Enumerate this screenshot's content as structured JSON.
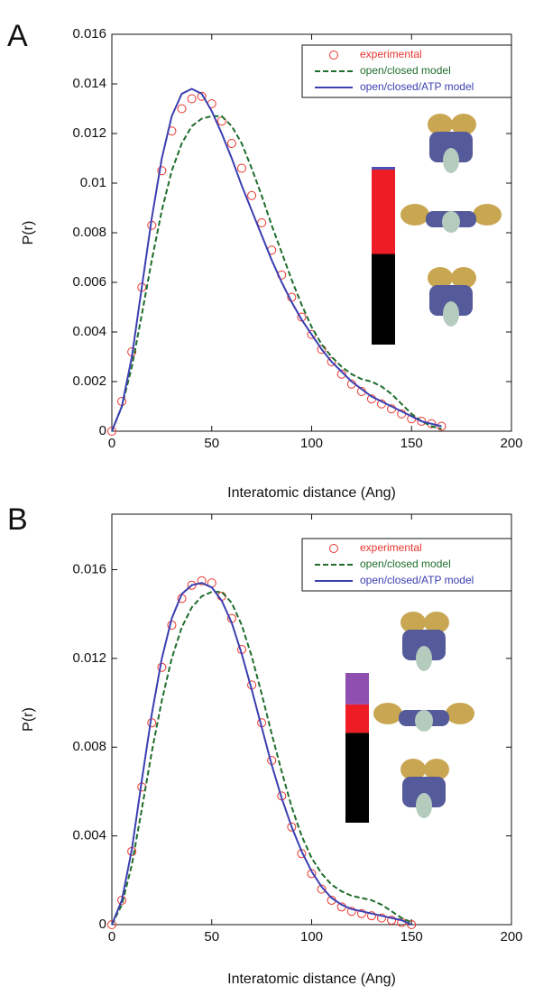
{
  "chart_data": [
    {
      "type": "line",
      "panel": "A",
      "xlabel": "Interatomic distance (Ang)",
      "ylabel": "P(r)",
      "xlim": [
        0,
        200
      ],
      "xticks": [
        0,
        50,
        100,
        150,
        200
      ],
      "ylim": [
        0,
        0.016
      ],
      "yticks": [
        0,
        0.002,
        0.004,
        0.006,
        0.008,
        0.01,
        0.012,
        0.014,
        0.016
      ],
      "x": [
        0,
        5,
        10,
        15,
        20,
        25,
        30,
        35,
        40,
        45,
        50,
        55,
        60,
        65,
        70,
        75,
        80,
        85,
        90,
        95,
        100,
        105,
        110,
        115,
        120,
        125,
        130,
        135,
        140,
        145,
        150,
        155,
        160,
        165
      ],
      "series": [
        {
          "name": "experimental",
          "color": "#e8342c",
          "style": "markers",
          "values": [
            0,
            0.0012,
            0.0032,
            0.0058,
            0.0083,
            0.0105,
            0.0121,
            0.013,
            0.0134,
            0.0135,
            0.0132,
            0.0125,
            0.0116,
            0.0106,
            0.0095,
            0.0084,
            0.0073,
            0.0063,
            0.0054,
            0.0046,
            0.0039,
            0.0033,
            0.0028,
            0.0023,
            0.0019,
            0.0016,
            0.0013,
            0.0011,
            0.0009,
            0.0007,
            0.0005,
            0.0004,
            0.0003,
            0.0002
          ]
        },
        {
          "name": "open/closed model",
          "color": "#1f6e2c",
          "style": "dashed",
          "values": [
            0,
            0.001,
            0.0026,
            0.0047,
            0.0069,
            0.0089,
            0.0105,
            0.0116,
            0.0123,
            0.0126,
            0.0127,
            0.0127,
            0.0123,
            0.0116,
            0.0106,
            0.0095,
            0.0083,
            0.0072,
            0.0061,
            0.0051,
            0.0042,
            0.0035,
            0.003,
            0.0026,
            0.0023,
            0.0021,
            0.002,
            0.0018,
            0.0015,
            0.0011,
            0.0007,
            0.0004,
            0.0002,
            0.0001
          ]
        },
        {
          "name": "open/closed/ATP model",
          "color": "#3b3fb0",
          "style": "solid",
          "values": [
            0,
            0.001,
            0.003,
            0.0058,
            0.0086,
            0.011,
            0.0127,
            0.0136,
            0.0138,
            0.0136,
            0.0129,
            0.012,
            0.011,
            0.0099,
            0.0089,
            0.0079,
            0.0069,
            0.006,
            0.0052,
            0.0045,
            0.0039,
            0.0033,
            0.0028,
            0.0024,
            0.002,
            0.0017,
            0.0014,
            0.0012,
            0.001,
            0.0008,
            0.0006,
            0.0004,
            0.0003,
            0.0002
          ]
        }
      ],
      "inset_bar": {
        "values": [
          0.51,
          0.475,
          0.015
        ],
        "colors": [
          "#000000",
          "#ee1c24",
          "#4a4fb8"
        ]
      }
    },
    {
      "type": "line",
      "panel": "B",
      "xlabel": "Interatomic distance (Ang)",
      "ylabel": "P(r)",
      "xlim": [
        0,
        200
      ],
      "xticks": [
        0,
        50,
        100,
        150,
        200
      ],
      "ylim": [
        0,
        0.0185
      ],
      "yticks": [
        0,
        0.004,
        0.008,
        0.012,
        0.016
      ],
      "x": [
        0,
        5,
        10,
        15,
        20,
        25,
        30,
        35,
        40,
        45,
        50,
        55,
        60,
        65,
        70,
        75,
        80,
        85,
        90,
        95,
        100,
        105,
        110,
        115,
        120,
        125,
        130,
        135,
        140,
        145,
        150
      ],
      "series": [
        {
          "name": "experimental",
          "color": "#e8342c",
          "style": "markers",
          "values": [
            0,
            0.0011,
            0.0033,
            0.0062,
            0.0091,
            0.0116,
            0.0135,
            0.0147,
            0.0153,
            0.0155,
            0.0154,
            0.0148,
            0.0138,
            0.0124,
            0.0108,
            0.0091,
            0.0074,
            0.0058,
            0.0044,
            0.0032,
            0.0023,
            0.0016,
            0.0011,
            0.0008,
            0.0006,
            0.0005,
            0.0004,
            0.0003,
            0.0002,
            0.0001,
            0
          ]
        },
        {
          "name": "open/closed model",
          "color": "#1f6e2c",
          "style": "dashed",
          "values": [
            0,
            0.0009,
            0.0027,
            0.0052,
            0.0078,
            0.0101,
            0.012,
            0.0134,
            0.0143,
            0.0148,
            0.015,
            0.015,
            0.0145,
            0.0135,
            0.0121,
            0.0104,
            0.0086,
            0.0069,
            0.0053,
            0.004,
            0.003,
            0.0023,
            0.0018,
            0.0015,
            0.0013,
            0.0012,
            0.0011,
            0.0009,
            0.0006,
            0.0003,
            0.0001
          ]
        },
        {
          "name": "open/closed/ATP model",
          "color": "#3b3fb0",
          "style": "solid",
          "values": [
            0,
            0.0011,
            0.0034,
            0.0065,
            0.0095,
            0.012,
            0.0138,
            0.0149,
            0.0153,
            0.0154,
            0.0152,
            0.0146,
            0.0136,
            0.0122,
            0.0106,
            0.0089,
            0.0072,
            0.0057,
            0.0044,
            0.0033,
            0.0024,
            0.0017,
            0.0012,
            0.0009,
            0.0007,
            0.0006,
            0.0005,
            0.0004,
            0.0003,
            0.0002,
            0
          ]
        }
      ],
      "inset_bar": {
        "values": [
          0.6,
          0.19,
          0.21
        ],
        "colors": [
          "#000000",
          "#ee1c24",
          "#8e4fb0"
        ]
      }
    }
  ]
}
